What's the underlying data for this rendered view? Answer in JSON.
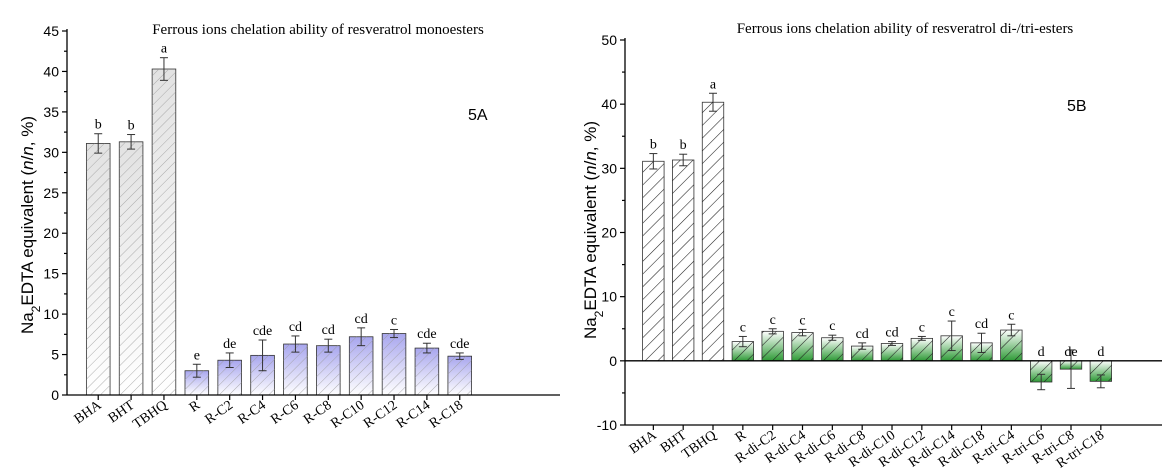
{
  "chart_data": [
    {
      "type": "bar",
      "title": "Ferrous ions chelation ability of resveratrol monoesters",
      "panel_label": "5A",
      "ylabel": "Na2EDTA equivalent (n/n, %)",
      "ylabel_parts": {
        "pre": "Na",
        "sub": "2",
        "mid": "EDTA equivalent (",
        "it1": "n",
        "slash": "/",
        "it2": "n",
        "post": ", %)"
      },
      "ylim": [
        0,
        45
      ],
      "yticks": [
        0,
        5,
        10,
        15,
        20,
        25,
        30,
        35,
        40,
        45
      ],
      "categories": [
        "BHA",
        "BHT",
        "TBHQ",
        "R",
        "R-C2",
        "R-C4",
        "R-C6",
        "R-C8",
        "R-C10",
        "R-C12",
        "R-C14",
        "R-C18"
      ],
      "values": [
        31.1,
        31.3,
        40.3,
        3.0,
        4.3,
        4.9,
        6.3,
        6.1,
        7.2,
        7.6,
        5.8,
        4.8
      ],
      "errors": [
        1.2,
        0.9,
        1.4,
        0.8,
        0.9,
        1.9,
        1.0,
        0.8,
        1.1,
        0.5,
        0.6,
        0.4
      ],
      "letters": [
        "b",
        "b",
        "a",
        "e",
        "de",
        "cde",
        "cd",
        "cd",
        "cd",
        "c",
        "cde",
        "cde"
      ],
      "colors": {
        "standard": "#e8e8e8",
        "sample": "#a8a6ee",
        "hatch": "#999999"
      }
    },
    {
      "type": "bar",
      "title": "Ferrous ions chelation ability of resveratrol di-/tri-esters",
      "panel_label": "5B",
      "ylabel": "Na2EDTA equivalent (n/n, %)",
      "ylabel_parts": {
        "pre": "Na",
        "sub": "2",
        "mid": "EDTA equivalent (",
        "it1": "n",
        "slash": "/",
        "it2": "n",
        "post": ", %)"
      },
      "ylim": [
        -10,
        50
      ],
      "yticks": [
        -10,
        0,
        10,
        20,
        30,
        40,
        50
      ],
      "categories": [
        "BHA",
        "BHT",
        "TBHQ",
        "R",
        "R-di-C2",
        "R-di-C4",
        "R-di-C6",
        "R-di-C8",
        "R-di-C10",
        "R-di-C12",
        "R-di-C14",
        "R-di-C18",
        "R-tri-C4",
        "R-tri-C6",
        "R-tri-C8",
        "R-tri-C18"
      ],
      "values": [
        31.1,
        31.3,
        40.3,
        3.0,
        4.6,
        4.4,
        3.6,
        2.3,
        2.7,
        3.5,
        3.9,
        2.8,
        4.8,
        -3.3,
        -1.3,
        -3.2
      ],
      "errors": [
        1.2,
        0.9,
        1.4,
        0.8,
        0.4,
        0.5,
        0.4,
        0.5,
        0.3,
        0.3,
        2.3,
        1.5,
        0.9,
        1.2,
        3.0,
        1.0
      ],
      "letters": [
        "b",
        "b",
        "a",
        "c",
        "c",
        "c",
        "c",
        "cd",
        "cd",
        "c",
        "c",
        "cd",
        "c",
        "d",
        "de",
        "d"
      ],
      "colors": {
        "standard": "#ffffff",
        "sample": "#2e9a36",
        "hatch": "#222222"
      }
    }
  ]
}
